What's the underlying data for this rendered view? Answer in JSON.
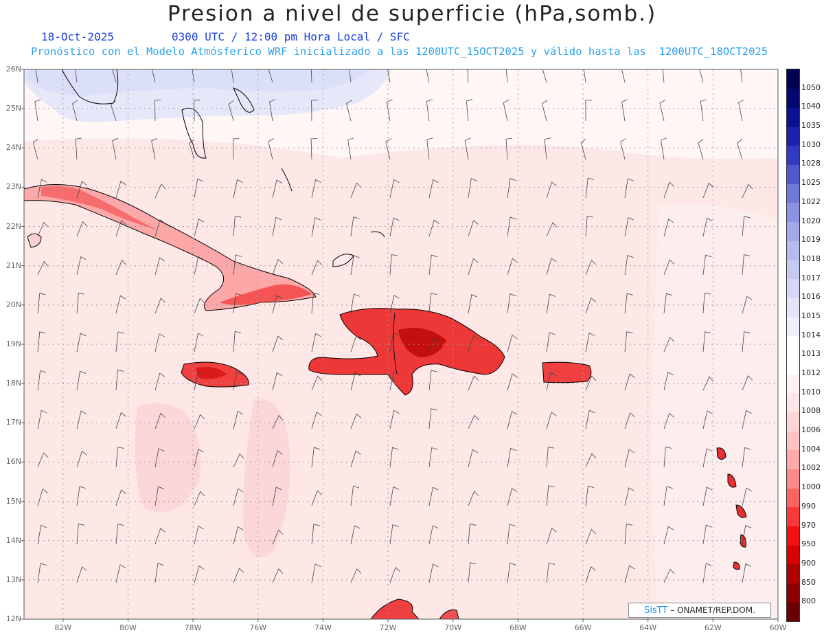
{
  "header": {
    "title": "Presion a nivel de superficie (hPa,somb.)",
    "date": "18-Oct-2025",
    "valid_time": "0300 UTC / 12:00 pm Hora Local / SFC",
    "forecast_note": "Pronóstico con el Modelo Atmósferico WRF inicializado a las 1200UTC_15OCT2025 y válido hasta las  1200UTC_18OCT2025"
  },
  "map": {
    "lat_labels": [
      "26N",
      "25N",
      "24N",
      "23N",
      "22N",
      "21N",
      "20N",
      "19N",
      "18N",
      "17N",
      "16N",
      "15N",
      "14N",
      "13N",
      "12N"
    ],
    "lon_labels": [
      "82W",
      "80W",
      "78W",
      "76W",
      "74W",
      "72W",
      "70W",
      "68W",
      "66W",
      "64W",
      "62W",
      "60W"
    ],
    "lat_range": [
      12,
      26
    ],
    "lon_range": [
      -83.2,
      -60
    ],
    "background_fill": "#fde8e7",
    "north_fill": "#e6e8fa"
  },
  "legend": {
    "levels": [
      "800",
      "850",
      "900",
      "950",
      "970",
      "990",
      "1000",
      "1002",
      "1004",
      "1006",
      "1008",
      "1010",
      "1012",
      "1013",
      "1014",
      "1015",
      "1016",
      "1017",
      "1018",
      "1019",
      "1020",
      "1022",
      "1025",
      "1028",
      "1030",
      "1035",
      "1040",
      "1050"
    ],
    "colors": [
      "#6b0000",
      "#8c0000",
      "#b00000",
      "#d80000",
      "#f41010",
      "#fa3a3a",
      "#fc6464",
      "#fd8a8a",
      "#feaaaa",
      "#fec4c4",
      "#fed6d6",
      "#fde6e6",
      "#fef2f2",
      "#ffffff",
      "#ffffff",
      "#eef0fb",
      "#e2e5f8",
      "#d4d8f6",
      "#c6caf2",
      "#b6bbee",
      "#a4aae9",
      "#8c93e2",
      "#6e78da",
      "#5058cf",
      "#323ac2",
      "#1c22ae",
      "#0c1094",
      "#040872",
      "#00034f"
    ]
  },
  "credit": {
    "brand": "SisTT",
    "text": "– ONAMET/REP.DOM."
  }
}
